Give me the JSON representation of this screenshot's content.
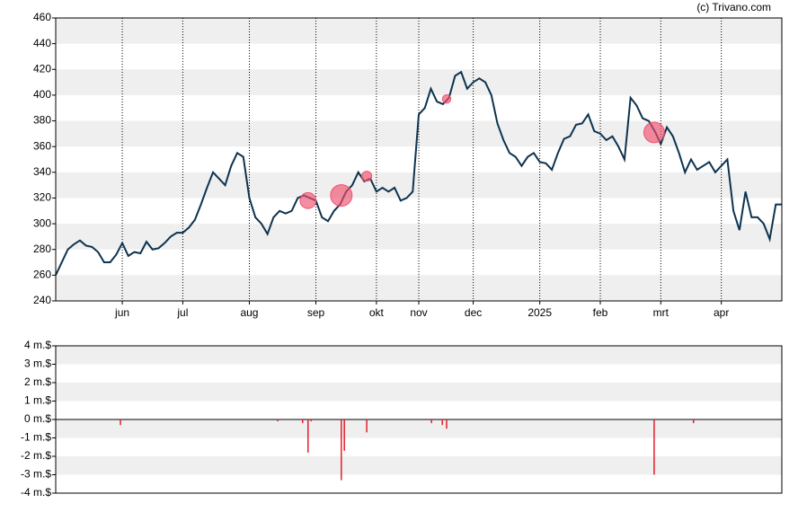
{
  "chart_data": [
    {
      "type": "line",
      "credit": "(c) Trivano.com",
      "xlim": [
        0,
        120
      ],
      "xticks": [
        {
          "value": 11,
          "label": "jun"
        },
        {
          "value": 21,
          "label": "jul"
        },
        {
          "value": 32,
          "label": "aug"
        },
        {
          "value": 43,
          "label": "sep"
        },
        {
          "value": 53,
          "label": "okt"
        },
        {
          "value": 60,
          "label": "nov"
        },
        {
          "value": 69,
          "label": "dec"
        },
        {
          "value": 80,
          "label": "2025"
        },
        {
          "value": 90,
          "label": "feb"
        },
        {
          "value": 100,
          "label": "mrt"
        },
        {
          "value": 110,
          "label": "apr"
        }
      ],
      "ylim": [
        240,
        460
      ],
      "yticks": [
        240,
        260,
        280,
        300,
        320,
        340,
        360,
        380,
        400,
        420,
        440,
        460
      ],
      "grid": true,
      "band_color": "#efefef",
      "series": [
        {
          "color": "#0d3350",
          "values": [
            260,
            270,
            280,
            284,
            287,
            283,
            282,
            278,
            270,
            270,
            276,
            285,
            275,
            278,
            277,
            286,
            280,
            281,
            285,
            290,
            293,
            293,
            297,
            303,
            315,
            328,
            340,
            335,
            330,
            345,
            355,
            352,
            320,
            305,
            300,
            292,
            305,
            310,
            308,
            310,
            320,
            322,
            320,
            318,
            305,
            302,
            310,
            315,
            325,
            330,
            340,
            333,
            335,
            325,
            328,
            325,
            328,
            318,
            320,
            325,
            385,
            390,
            405,
            395,
            393,
            398,
            415,
            418,
            405,
            410,
            413,
            410,
            400,
            378,
            365,
            355,
            352,
            345,
            352,
            355,
            348,
            347,
            342,
            355,
            366,
            368,
            377,
            378,
            385,
            372,
            370,
            365,
            368,
            360,
            350,
            398,
            392,
            382,
            380,
            372,
            362,
            375,
            368,
            355,
            340,
            350,
            342,
            345,
            348,
            340,
            345,
            350,
            310,
            295,
            325,
            305,
            305,
            300,
            288,
            315,
            315
          ]
        }
      ],
      "markers": {
        "color": "#f0506e",
        "x": [
          41.7,
          47.2,
          51.4,
          64.6,
          98.9
        ],
        "values": [
          318,
          322,
          337,
          397,
          371
        ],
        "sizes": [
          1.8,
          3.3,
          0.7,
          0.5,
          3.0
        ]
      }
    },
    {
      "type": "bar",
      "color": "#e0202e",
      "xlim": [
        0,
        120
      ],
      "ylim": [
        -4,
        4
      ],
      "yticks": [
        {
          "value": -4,
          "label": "-4 m.$"
        },
        {
          "value": -3,
          "label": "-3 m.$"
        },
        {
          "value": -2,
          "label": "-2 m.$"
        },
        {
          "value": -1,
          "label": "-1 m.$"
        },
        {
          "value": 0,
          "label": "0 m.$"
        },
        {
          "value": 1,
          "label": "1 m.$"
        },
        {
          "value": 2,
          "label": "2 m.$"
        },
        {
          "value": 3,
          "label": "3 m.$"
        },
        {
          "value": 4,
          "label": "4 m.$"
        }
      ],
      "grid": true,
      "band_color": "#efefef",
      "x": [
        10.7,
        36.7,
        40.8,
        41.7,
        42.2,
        47.2,
        47.7,
        51.4,
        62.1,
        63.9,
        64.6,
        98.9,
        105.4
      ],
      "values": [
        -0.3,
        -0.1,
        -0.2,
        -1.8,
        -0.1,
        -3.3,
        -1.7,
        -0.7,
        -0.2,
        -0.3,
        -0.5,
        -3.0,
        -0.2
      ]
    }
  ]
}
